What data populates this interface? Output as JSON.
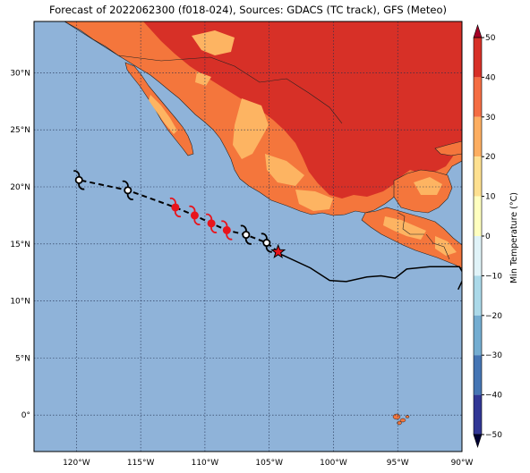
{
  "title": "Forecast of 2022062300 (f018-024), Sources: GDACS (TC track), GFS (Meteo)",
  "map": {
    "lon_range": [
      -123.3,
      -90
    ],
    "lat_range": [
      -3.2,
      34.5
    ],
    "lon_ticks": [
      -120,
      -115,
      -110,
      -105,
      -100,
      -95,
      -90
    ],
    "lon_tick_labels": [
      "120°W",
      "115°W",
      "110°W",
      "105°W",
      "100°W",
      "95°W",
      "90°W"
    ],
    "lat_ticks": [
      0,
      5,
      10,
      15,
      20,
      25,
      30
    ],
    "lat_tick_labels": [
      "0°",
      "5°N",
      "10°N",
      "15°N",
      "20°N",
      "25°N",
      "30°N"
    ],
    "gridlines": true,
    "ocean_color": "#8fb3d9",
    "land_colors": [
      "#fdb462",
      "#f4763c",
      "#d73027"
    ]
  },
  "colorbar": {
    "label": "Min Temperature (°C)",
    "ticks": [
      "50",
      "40",
      "30",
      "20",
      "10",
      "0",
      "−10",
      "−20",
      "−30",
      "−40",
      "−50"
    ],
    "colors_top_to_bottom": [
      "#a50026",
      "#d73027",
      "#f46d43",
      "#fdae61",
      "#fee090",
      "#ffffbf",
      "#e0f3f8",
      "#abd9e9",
      "#74add1",
      "#4575b4",
      "#313695",
      "#1a1a8a"
    ]
  },
  "track": {
    "past_track": [
      [
        -104.5,
        14.3
      ],
      [
        -101.8,
        12.9
      ],
      [
        -100.3,
        11.8
      ],
      [
        -99.0,
        11.7
      ],
      [
        -97.4,
        12.1
      ],
      [
        -96.3,
        12.2
      ],
      [
        -95.2,
        12.0
      ],
      [
        -94.3,
        12.8
      ],
      [
        -92.5,
        13.0
      ],
      [
        -90.2,
        13.0
      ],
      [
        -89.8,
        12.2
      ],
      [
        -90.3,
        11.0
      ]
    ],
    "forecast_positions": [
      {
        "lon": -105.2,
        "lat": 15.1,
        "color": "black"
      },
      {
        "lon": -106.8,
        "lat": 15.8,
        "color": "black"
      },
      {
        "lon": -108.3,
        "lat": 16.2,
        "color": "red"
      },
      {
        "lon": -109.5,
        "lat": 16.8,
        "color": "red"
      },
      {
        "lon": -110.8,
        "lat": 17.5,
        "color": "red"
      },
      {
        "lon": -112.3,
        "lat": 18.2,
        "color": "red"
      },
      {
        "lon": -116.0,
        "lat": 19.7,
        "color": "black"
      },
      {
        "lon": -119.8,
        "lat": 20.6,
        "color": "black"
      }
    ],
    "current_position": {
      "lon": -104.3,
      "lat": 14.3
    }
  }
}
